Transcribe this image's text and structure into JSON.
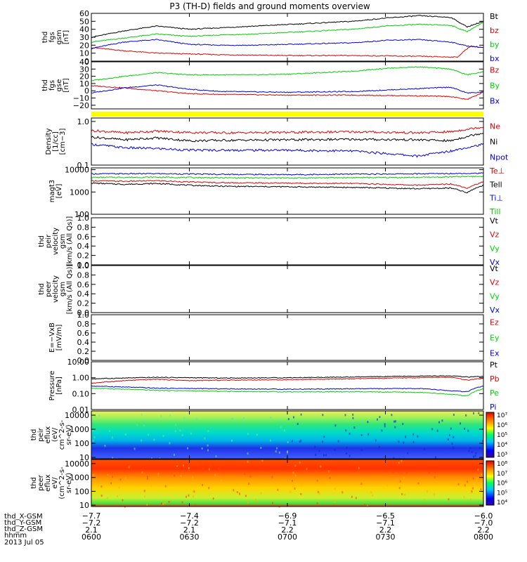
{
  "title": "P3 (TH-D) fields and ground moments overview",
  "colors": {
    "black": "#000000",
    "red": "#e00000",
    "green": "#00d000",
    "blue": "#0000e0",
    "yellow": "#ffff00"
  },
  "chart_data": [
    {
      "type": "line",
      "id": "fgs_gsm",
      "ylabel": [
        "thd",
        "fgs",
        "gsm",
        "[nT]"
      ],
      "yticks": [
        "0",
        "10",
        "20",
        "30",
        "40",
        "50",
        "60"
      ],
      "ylim": [
        0,
        60
      ],
      "scale": "linear",
      "series": [
        {
          "name": "Bt",
          "color": "black",
          "x": [
            0,
            10,
            20,
            30,
            40,
            50,
            60,
            70,
            80,
            90,
            100,
            110,
            115,
            120
          ],
          "values": [
            30,
            38,
            44,
            40,
            42,
            44,
            46,
            48,
            50,
            54,
            57,
            55,
            43,
            50
          ]
        },
        {
          "name": "bz",
          "color": "red",
          "x": [
            0,
            10,
            20,
            40,
            60,
            80,
            100,
            112,
            116,
            120
          ],
          "values": [
            17,
            13,
            10,
            8,
            7,
            7,
            6,
            5,
            19,
            17
          ]
        },
        {
          "name": "by",
          "color": "green",
          "x": [
            0,
            10,
            20,
            30,
            40,
            50,
            60,
            70,
            80,
            90,
            100,
            110,
            115,
            120
          ],
          "values": [
            24,
            29,
            34,
            31,
            33,
            34,
            36,
            38,
            40,
            44,
            46,
            45,
            37,
            49
          ]
        },
        {
          "name": "bx",
          "color": "blue",
          "x": [
            0,
            10,
            20,
            30,
            40,
            50,
            60,
            70,
            80,
            90,
            100,
            110,
            115,
            120
          ],
          "values": [
            16,
            24,
            27,
            21,
            20,
            20,
            21,
            22,
            23,
            26,
            27,
            24,
            19,
            17
          ]
        }
      ]
    },
    {
      "type": "line",
      "id": "fgs_gse",
      "ylabel": [
        "thd",
        "fgs",
        "gse",
        "[nT]"
      ],
      "yticks": [
        "−20",
        "−10",
        "0",
        "10",
        "20",
        "30",
        "40"
      ],
      "ylim": [
        -25,
        40
      ],
      "scale": "linear",
      "series": [
        {
          "name": "Bz",
          "color": "red",
          "x": [
            0,
            10,
            20,
            30,
            40,
            60,
            80,
            100,
            110,
            115,
            120
          ],
          "values": [
            7,
            4,
            0,
            -4,
            -5,
            -6,
            -6,
            -7,
            -8,
            -12,
            -2
          ]
        },
        {
          "name": "By",
          "color": "green",
          "x": [
            0,
            10,
            20,
            30,
            40,
            50,
            60,
            70,
            80,
            90,
            100,
            110,
            115,
            120
          ],
          "values": [
            14,
            20,
            25,
            22,
            22,
            22,
            23,
            25,
            27,
            31,
            33,
            30,
            22,
            26
          ]
        },
        {
          "name": "Bx",
          "color": "blue",
          "x": [
            0,
            10,
            20,
            30,
            40,
            60,
            80,
            100,
            110,
            115,
            120
          ],
          "values": [
            -3,
            4,
            8,
            2,
            -1,
            -2,
            -1,
            3,
            5,
            -3,
            -2
          ]
        }
      ]
    },
    {
      "type": "line",
      "id": "density",
      "ylabel": [
        "Density",
        "[1/cc]",
        "[cm−3]"
      ],
      "yticks": [
        "0.1",
        "1.0"
      ],
      "ylim": [
        0.1,
        1.2
      ],
      "scale": "log",
      "series": [
        {
          "name": "Ne",
          "color": "red",
          "x": [
            0,
            10,
            20,
            30,
            40,
            60,
            80,
            100,
            110,
            120
          ],
          "values": [
            0.62,
            0.55,
            0.6,
            0.56,
            0.55,
            0.56,
            0.58,
            0.55,
            0.58,
            0.75
          ]
        },
        {
          "name": "Ni",
          "color": "black",
          "x": [
            0,
            10,
            20,
            30,
            40,
            60,
            80,
            100,
            110,
            120
          ],
          "values": [
            0.44,
            0.38,
            0.42,
            0.36,
            0.37,
            0.38,
            0.39,
            0.38,
            0.36,
            0.55
          ]
        },
        {
          "name": "Npot",
          "color": "blue",
          "x": [
            0,
            10,
            20,
            30,
            40,
            60,
            80,
            100,
            110,
            120
          ],
          "values": [
            0.3,
            0.25,
            0.24,
            0.22,
            0.22,
            0.22,
            0.21,
            0.16,
            0.21,
            0.3
          ]
        }
      ]
    },
    {
      "type": "line",
      "id": "mag_temp",
      "ylabel": [
        "magt3",
        "[eV]"
      ],
      "yticks": [
        "100",
        "1000",
        "10000"
      ],
      "ylim": [
        100,
        12000
      ],
      "scale": "log",
      "series": [
        {
          "name": "Te⊥",
          "color": "red",
          "x": [
            0,
            10,
            20,
            30,
            40,
            60,
            80,
            100,
            110,
            115,
            120
          ],
          "values": [
            3200,
            3000,
            3200,
            2800,
            2600,
            2500,
            2400,
            2000,
            2300,
            1500,
            2800
          ]
        },
        {
          "name": "Tell",
          "color": "black",
          "x": [
            0,
            10,
            20,
            30,
            40,
            60,
            80,
            100,
            110,
            115,
            120
          ],
          "values": [
            2500,
            2200,
            2400,
            2000,
            1800,
            1700,
            1600,
            1400,
            1500,
            900,
            2000
          ]
        },
        {
          "name": "Ti⊥",
          "color": "blue",
          "x": [
            0,
            20,
            40,
            60,
            80,
            100,
            120
          ],
          "values": [
            6500,
            6600,
            6200,
            6000,
            6300,
            6500,
            7000
          ]
        },
        {
          "name": "Till",
          "color": "green",
          "x": [
            0,
            20,
            40,
            60,
            80,
            100,
            120
          ],
          "values": [
            4500,
            4600,
            4300,
            4200,
            4400,
            4500,
            5000
          ]
        }
      ]
    },
    {
      "type": "line",
      "id": "peir_velocity",
      "ylabel": [
        "thd",
        "peir",
        "velocity",
        "gsm",
        "[km/s (All Qs)]"
      ],
      "yticks": [
        "0.0",
        "0.2",
        "0.4",
        "0.6",
        "0.8",
        "1.0"
      ],
      "ylim": [
        0,
        1
      ],
      "scale": "linear",
      "series": [
        {
          "name": "Vt",
          "color": "black",
          "x": [],
          "values": []
        },
        {
          "name": "Vz",
          "color": "red",
          "x": [],
          "values": []
        },
        {
          "name": "Vy",
          "color": "green",
          "x": [],
          "values": []
        },
        {
          "name": "Vx",
          "color": "blue",
          "x": [],
          "values": []
        }
      ]
    },
    {
      "type": "line",
      "id": "peer_velocity",
      "ylabel": [
        "thd",
        "peer",
        "velocity",
        "gsm",
        "[km/s (All Qs)]"
      ],
      "yticks": [
        "0.0",
        "0.2",
        "0.4",
        "0.6",
        "0.8",
        "1.0"
      ],
      "ylim": [
        0,
        1
      ],
      "scale": "linear",
      "series": [
        {
          "name": "Vt",
          "color": "black",
          "x": [],
          "values": []
        },
        {
          "name": "Vz",
          "color": "red",
          "x": [],
          "values": []
        },
        {
          "name": "Vy",
          "color": "green",
          "x": [],
          "values": []
        },
        {
          "name": "Vx",
          "color": "blue",
          "x": [],
          "values": []
        }
      ]
    },
    {
      "type": "line",
      "id": "efield",
      "ylabel": [
        "E=−VxB",
        "[mV/m]"
      ],
      "yticks": [
        "0.0",
        "0.2",
        "0.4",
        "0.6",
        "0.8",
        "1.0"
      ],
      "ylim": [
        0,
        1
      ],
      "scale": "linear",
      "series": [
        {
          "name": "Ez",
          "color": "red",
          "x": [],
          "values": []
        },
        {
          "name": "Ey",
          "color": "green",
          "x": [],
          "values": []
        },
        {
          "name": "Ex",
          "color": "blue",
          "x": [],
          "values": []
        }
      ]
    },
    {
      "type": "line",
      "id": "pressure",
      "ylabel": [
        "Pressure",
        "[nPa]"
      ],
      "yticks": [
        "0.01",
        "0.10",
        "1.00",
        "10.00"
      ],
      "ylim": [
        0.01,
        10
      ],
      "scale": "log",
      "series": [
        {
          "name": "Pt",
          "color": "black",
          "x": [
            0,
            20,
            40,
            60,
            80,
            100,
            110,
            115,
            120
          ],
          "values": [
            0.85,
            1.05,
            0.95,
            1.0,
            1.1,
            1.25,
            1.3,
            1.1,
            1.2
          ]
        },
        {
          "name": "Pb",
          "color": "red",
          "x": [
            0,
            10,
            20,
            30,
            40,
            60,
            80,
            100,
            110,
            115,
            120
          ],
          "values": [
            0.45,
            0.65,
            0.8,
            0.65,
            0.7,
            0.75,
            0.85,
            1.0,
            1.05,
            0.7,
            0.9
          ]
        },
        {
          "name": "Pe",
          "color": "green",
          "x": [
            0,
            20,
            40,
            60,
            80,
            100,
            110,
            115,
            120
          ],
          "values": [
            0.22,
            0.16,
            0.14,
            0.13,
            0.13,
            0.12,
            0.09,
            0.07,
            0.2
          ]
        },
        {
          "name": "Pi",
          "color": "blue",
          "x": [
            0,
            20,
            40,
            60,
            80,
            100,
            110,
            115,
            120
          ],
          "values": [
            0.3,
            0.22,
            0.2,
            0.19,
            0.2,
            0.21,
            0.15,
            0.13,
            0.3
          ]
        }
      ]
    },
    {
      "type": "heatmap",
      "id": "peir_eflux",
      "ylabel": [
        "thd",
        "peir",
        "eflux",
        "(eV/",
        "cm^2-s-",
        "sr-eV)"
      ],
      "yticks": [
        "10",
        "100",
        "1000",
        "10000"
      ],
      "ylim": [
        8,
        20000
      ],
      "scale": "log",
      "colorbar_ticks": [
        "10³",
        "10⁴",
        "10⁵",
        "10⁶",
        "10⁷"
      ]
    },
    {
      "type": "heatmap",
      "id": "peer_eflux",
      "ylabel": [
        "thd",
        "peer",
        "eflux",
        "eV/",
        "(cm^2-s-",
        "sr-eV)"
      ],
      "yticks": [
        "10",
        "100",
        "1000",
        "10000"
      ],
      "ylim": [
        8,
        20000
      ],
      "scale": "log",
      "colorbar_ticks": [
        "10⁴",
        "10⁵",
        "10⁶",
        "10⁷",
        "10⁸"
      ]
    }
  ],
  "xaxis": {
    "labels": [
      "thd_X-GSM",
      "thd_Y-GSM",
      "thd_Z-GSM",
      "hhmm"
    ],
    "date": "2013 Jul 05",
    "columns": [
      {
        "x": 0,
        "X": "−7.7",
        "Y": "−7.2",
        "Z": "2.1",
        "time": "0600"
      },
      {
        "x": 30,
        "X": "−7.4",
        "Y": "−7.2",
        "Z": "2.1",
        "time": "0630"
      },
      {
        "x": 60,
        "X": "−6.9",
        "Y": "−7.1",
        "Z": "2.2",
        "time": "0700"
      },
      {
        "x": 90,
        "X": "−6.5",
        "Y": "−7.1",
        "Z": "2.2",
        "time": "0730"
      },
      {
        "x": 120,
        "X": "−6.0",
        "Y": "−7.0",
        "Z": "2.2",
        "time": "0800"
      }
    ]
  }
}
